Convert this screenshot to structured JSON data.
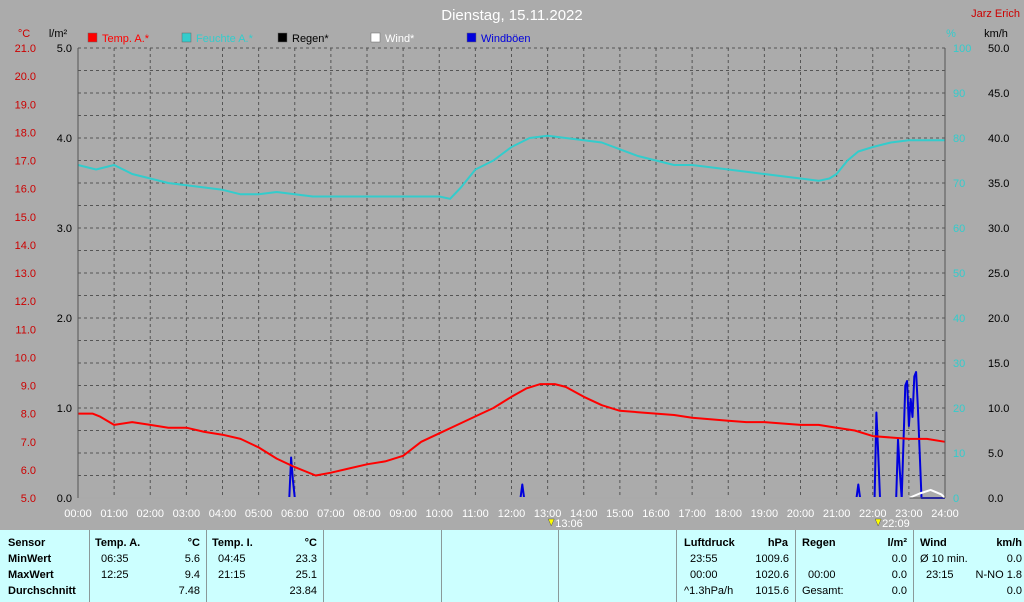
{
  "header": {
    "title": "Dienstag, 15.11.2022",
    "author": "Jarz Erich",
    "unit_temp": "°C",
    "unit_rain": "l/m²",
    "unit_pct": "%",
    "unit_wind": "km/h"
  },
  "colors": {
    "temp": "#ff0000",
    "humidity": "#33cccc",
    "rain": "#000000",
    "wind": "#ffffff",
    "gust": "#0000dd",
    "background": "#ababab",
    "panel": "#ccffff"
  },
  "chart_data": {
    "type": "line",
    "title": "Dienstag, 15.11.2022",
    "grid": true,
    "legend_placement": "top-left",
    "x_ticks": [
      "00:00",
      "01:00",
      "02:00",
      "03:00",
      "04:00",
      "05:00",
      "06:00",
      "07:00",
      "08:00",
      "09:00",
      "10:00",
      "11:00",
      "12:00",
      "13:00",
      "14:00",
      "15:00",
      "16:00",
      "17:00",
      "18:00",
      "19:00",
      "20:00",
      "21:00",
      "22:00",
      "23:00",
      "24:00"
    ],
    "x_range_hours": [
      0,
      24
    ],
    "axes": {
      "temp": {
        "label": "°C",
        "range": [
          5.0,
          21.0
        ],
        "ticks": [
          "21.0",
          "20.0",
          "19.0",
          "18.0",
          "17.0",
          "16.0",
          "15.0",
          "14.0",
          "13.0",
          "12.0",
          "11.0",
          "10.0",
          "9.0",
          "8.0",
          "7.0",
          "6.0",
          "5.0"
        ]
      },
      "rain": {
        "label": "l/m²",
        "range": [
          0.0,
          5.0
        ],
        "ticks": [
          "5.0",
          "4.0",
          "3.0",
          "2.0",
          "1.0",
          "0.0"
        ]
      },
      "humidity": {
        "label": "%",
        "range": [
          0,
          100
        ],
        "ticks": [
          "100",
          "90",
          "80",
          "70",
          "60",
          "50",
          "40",
          "30",
          "20",
          "10",
          "0"
        ]
      },
      "wind": {
        "label": "km/h",
        "range": [
          0.0,
          50.0
        ],
        "ticks": [
          "50.0",
          "45.0",
          "40.0",
          "35.0",
          "30.0",
          "25.0",
          "20.0",
          "15.0",
          "10.0",
          "5.0",
          "0.0"
        ]
      }
    },
    "series": [
      {
        "name": "Temp. A.*",
        "axis": "temp",
        "x": [
          0,
          0.4,
          0.6,
          1.0,
          1.5,
          2.0,
          2.5,
          3.0,
          3.5,
          4.0,
          4.5,
          5.0,
          5.5,
          6.0,
          6.58,
          7.0,
          7.5,
          8.0,
          8.5,
          9.0,
          9.5,
          10.0,
          10.5,
          11.0,
          11.5,
          12.0,
          12.42,
          12.8,
          13.2,
          13.5,
          14.0,
          14.5,
          15.0,
          15.5,
          16.0,
          16.5,
          17.0,
          17.5,
          18.0,
          18.5,
          19.0,
          19.5,
          20.0,
          20.5,
          21.0,
          21.5,
          22.0,
          22.5,
          23.0,
          23.5,
          24.0
        ],
        "values": [
          8.0,
          8.0,
          7.9,
          7.6,
          7.7,
          7.6,
          7.5,
          7.5,
          7.35,
          7.25,
          7.1,
          6.8,
          6.4,
          6.1,
          5.8,
          5.9,
          6.05,
          6.2,
          6.3,
          6.5,
          7.0,
          7.3,
          7.6,
          7.9,
          8.2,
          8.6,
          8.9,
          9.05,
          9.05,
          8.95,
          8.6,
          8.3,
          8.1,
          8.05,
          8.0,
          7.95,
          7.85,
          7.8,
          7.75,
          7.7,
          7.7,
          7.65,
          7.6,
          7.6,
          7.5,
          7.4,
          7.2,
          7.15,
          7.1,
          7.1,
          7.0
        ]
      },
      {
        "name": "Feuchte A.*",
        "axis": "humidity",
        "x": [
          0,
          0.5,
          1.0,
          1.5,
          2.0,
          2.5,
          3.0,
          3.5,
          4.0,
          4.5,
          5.0,
          5.5,
          6.0,
          6.5,
          7.0,
          8.0,
          9.0,
          10.0,
          10.3,
          10.6,
          11.0,
          11.5,
          12.0,
          12.5,
          13.0,
          13.5,
          14.0,
          14.5,
          15.0,
          15.5,
          16.0,
          16.5,
          17.0,
          17.5,
          18.0,
          18.5,
          19.0,
          19.5,
          20.0,
          20.5,
          20.8,
          21.0,
          21.3,
          21.6,
          22.0,
          22.5,
          23.0,
          23.5,
          24.0
        ],
        "values": [
          74,
          73,
          74,
          72,
          71,
          70,
          69.5,
          69,
          68.5,
          67.5,
          67.5,
          68,
          67.5,
          67,
          67,
          67,
          67,
          67,
          66.5,
          69,
          73,
          75,
          78,
          80,
          80.5,
          80,
          79.5,
          79,
          77.5,
          76,
          75,
          74,
          74,
          73.5,
          73,
          72.5,
          72,
          71.5,
          71,
          70.5,
          71,
          72,
          75,
          77,
          78,
          79,
          79.5,
          79.5,
          79.5
        ]
      },
      {
        "name": "Regen*",
        "axis": "rain",
        "x": [
          0,
          24
        ],
        "values": [
          0,
          0
        ]
      },
      {
        "name": "Wind*",
        "axis": "wind",
        "x": [
          0,
          23.0,
          23.3,
          23.6,
          23.9,
          24.0
        ],
        "values": [
          0,
          0,
          0.5,
          0.9,
          0.4,
          0
        ]
      },
      {
        "name": "Windböen",
        "axis": "wind",
        "x": [
          0,
          5.85,
          5.9,
          5.95,
          6.0,
          6.05,
          12.25,
          12.3,
          12.35,
          12.4,
          21.55,
          21.6,
          21.65,
          21.7,
          22.05,
          22.1,
          22.15,
          22.2,
          22.25,
          22.65,
          22.7,
          22.75,
          22.8,
          22.9,
          22.95,
          23.0,
          23.05,
          23.1,
          23.15,
          23.2,
          23.25,
          23.3,
          23.35,
          23.5,
          24.0
        ],
        "values": [
          0,
          0,
          4.5,
          2,
          0,
          0,
          0,
          1.5,
          0,
          0,
          0,
          1.5,
          0,
          0,
          0,
          9.5,
          5,
          0,
          0,
          0,
          6.5,
          3,
          0,
          12.5,
          13,
          8,
          11,
          9,
          13.5,
          14,
          10,
          5,
          0,
          0,
          0
        ]
      }
    ],
    "annotations": [
      {
        "label": "13:06",
        "x_hours": 13.1
      },
      {
        "label": "22:09",
        "x_hours": 22.15
      }
    ]
  },
  "panel": {
    "sensor": {
      "header": "Sensor",
      "rows": [
        "MinWert",
        "MaxWert",
        "Durchschnitt"
      ]
    },
    "temp_a": {
      "header": "Temp. A.",
      "unit": "°C",
      "min_time": "06:35",
      "min_val": "5.6",
      "max_time": "12:25",
      "max_val": "9.4",
      "avg": "7.48"
    },
    "temp_i": {
      "header": "Temp. I.",
      "unit": "°C",
      "min_time": "04:45",
      "min_val": "23.3",
      "max_time": "21:15",
      "max_val": "25.1",
      "avg": "23.84"
    },
    "pressure": {
      "header": "Luftdruck",
      "unit": "hPa",
      "min_time": "23:55",
      "min_val": "1009.6",
      "max_time": "00:00",
      "max_val": "1020.6",
      "trend": "^1.3hPa/h",
      "trend_val": "1015.6"
    },
    "rain": {
      "header": "Regen",
      "unit": "l/m²",
      "row1_time": "",
      "row1_val": "0.0",
      "row2_time": "00:00",
      "row2_val": "0.0",
      "row3_label": "Gesamt:",
      "row3_val": "0.0"
    },
    "wind": {
      "header": "Wind",
      "unit": "km/h",
      "row1_label": "Ø 10 min.",
      "row1_val": "0.0",
      "row2_time": "23:15",
      "row2_val": "N-NO 1.8",
      "row3_val": "0.0"
    }
  }
}
